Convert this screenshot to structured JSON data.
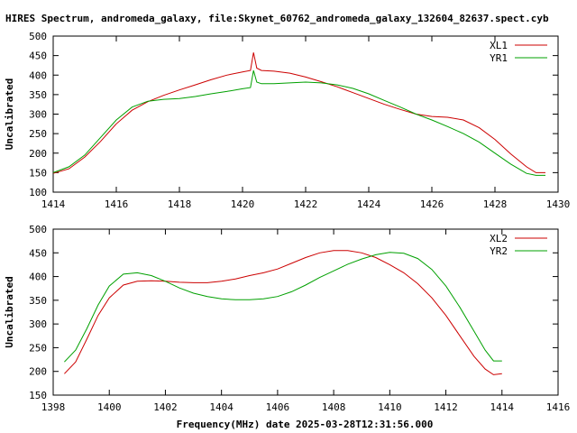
{
  "title": "HIRES Spectrum, andromeda_galaxy, file:Skynet_60762_andromeda_galaxy_132604_82637.spect.cyb",
  "xlabel": "Frequency(MHz) date 2025-03-28T12:31:56.000",
  "colors": {
    "red": "#cc0000",
    "green": "#00a000"
  },
  "chart_data": [
    {
      "type": "line",
      "ylabel": "Uncalibrated",
      "xlim": [
        1414,
        1430
      ],
      "ylim": [
        100,
        500
      ],
      "xticks": [
        1414,
        1416,
        1418,
        1420,
        1422,
        1424,
        1426,
        1428,
        1430
      ],
      "yticks": [
        100,
        150,
        200,
        250,
        300,
        350,
        400,
        450,
        500
      ],
      "grid": false,
      "legend_position": "top-right",
      "series": [
        {
          "name": "XL1",
          "color": "#cc0000",
          "points": [
            [
              1414.0,
              148
            ],
            [
              1414.5,
              160
            ],
            [
              1415.0,
              190
            ],
            [
              1415.5,
              230
            ],
            [
              1416.0,
              275
            ],
            [
              1416.5,
              310
            ],
            [
              1417.0,
              332
            ],
            [
              1417.5,
              348
            ],
            [
              1418.0,
              362
            ],
            [
              1418.5,
              375
            ],
            [
              1419.0,
              388
            ],
            [
              1419.5,
              400
            ],
            [
              1420.0,
              408
            ],
            [
              1420.25,
              412
            ],
            [
              1420.35,
              458
            ],
            [
              1420.45,
              418
            ],
            [
              1420.6,
              412
            ],
            [
              1421.0,
              410
            ],
            [
              1421.5,
              405
            ],
            [
              1422.0,
              395
            ],
            [
              1422.5,
              383
            ],
            [
              1423.0,
              370
            ],
            [
              1423.5,
              355
            ],
            [
              1424.0,
              340
            ],
            [
              1424.5,
              325
            ],
            [
              1425.0,
              312
            ],
            [
              1425.5,
              300
            ],
            [
              1426.0,
              294
            ],
            [
              1426.5,
              292
            ],
            [
              1427.0,
              285
            ],
            [
              1427.5,
              265
            ],
            [
              1428.0,
              235
            ],
            [
              1428.5,
              198
            ],
            [
              1429.0,
              165
            ],
            [
              1429.3,
              150
            ],
            [
              1429.6,
              150
            ]
          ]
        },
        {
          "name": "YR1",
          "color": "#00a000",
          "points": [
            [
              1414.0,
              150
            ],
            [
              1414.5,
              165
            ],
            [
              1415.0,
              195
            ],
            [
              1415.5,
              240
            ],
            [
              1416.0,
              285
            ],
            [
              1416.5,
              318
            ],
            [
              1417.0,
              333
            ],
            [
              1417.5,
              338
            ],
            [
              1418.0,
              340
            ],
            [
              1418.5,
              345
            ],
            [
              1419.0,
              352
            ],
            [
              1419.5,
              358
            ],
            [
              1420.0,
              365
            ],
            [
              1420.25,
              368
            ],
            [
              1420.35,
              412
            ],
            [
              1420.45,
              382
            ],
            [
              1420.6,
              378
            ],
            [
              1421.0,
              378
            ],
            [
              1421.5,
              380
            ],
            [
              1422.0,
              382
            ],
            [
              1422.5,
              380
            ],
            [
              1423.0,
              375
            ],
            [
              1423.5,
              366
            ],
            [
              1424.0,
              352
            ],
            [
              1424.5,
              335
            ],
            [
              1425.0,
              318
            ],
            [
              1425.5,
              300
            ],
            [
              1426.0,
              285
            ],
            [
              1426.5,
              268
            ],
            [
              1427.0,
              250
            ],
            [
              1427.5,
              228
            ],
            [
              1428.0,
              200
            ],
            [
              1428.5,
              172
            ],
            [
              1429.0,
              148
            ],
            [
              1429.3,
              143
            ],
            [
              1429.6,
              143
            ]
          ]
        }
      ]
    },
    {
      "type": "line",
      "ylabel": "Uncalibrated",
      "xlim": [
        1398,
        1416
      ],
      "ylim": [
        150,
        500
      ],
      "xticks": [
        1398,
        1400,
        1402,
        1404,
        1406,
        1408,
        1410,
        1412,
        1414,
        1416
      ],
      "yticks": [
        150,
        200,
        250,
        300,
        350,
        400,
        450,
        500
      ],
      "grid": false,
      "legend_position": "top-right",
      "series": [
        {
          "name": "XL2",
          "color": "#cc0000",
          "points": [
            [
              1398.4,
              195
            ],
            [
              1398.8,
              220
            ],
            [
              1399.2,
              268
            ],
            [
              1399.6,
              318
            ],
            [
              1400.0,
              355
            ],
            [
              1400.5,
              382
            ],
            [
              1401.0,
              390
            ],
            [
              1401.5,
              391
            ],
            [
              1402.0,
              390
            ],
            [
              1402.5,
              388
            ],
            [
              1403.0,
              387
            ],
            [
              1403.5,
              387
            ],
            [
              1404.0,
              390
            ],
            [
              1404.5,
              395
            ],
            [
              1405.0,
              402
            ],
            [
              1405.5,
              408
            ],
            [
              1406.0,
              416
            ],
            [
              1406.5,
              428
            ],
            [
              1407.0,
              440
            ],
            [
              1407.5,
              450
            ],
            [
              1408.0,
              455
            ],
            [
              1408.5,
              455
            ],
            [
              1409.0,
              450
            ],
            [
              1409.5,
              440
            ],
            [
              1410.0,
              425
            ],
            [
              1410.5,
              408
            ],
            [
              1411.0,
              385
            ],
            [
              1411.5,
              355
            ],
            [
              1412.0,
              318
            ],
            [
              1412.5,
              275
            ],
            [
              1413.0,
              232
            ],
            [
              1413.4,
              205
            ],
            [
              1413.7,
              193
            ],
            [
              1414.0,
              195
            ]
          ]
        },
        {
          "name": "YR2",
          "color": "#00a000",
          "points": [
            [
              1398.4,
              220
            ],
            [
              1398.8,
              245
            ],
            [
              1399.2,
              290
            ],
            [
              1399.6,
              340
            ],
            [
              1400.0,
              380
            ],
            [
              1400.5,
              405
            ],
            [
              1401.0,
              408
            ],
            [
              1401.5,
              402
            ],
            [
              1402.0,
              390
            ],
            [
              1402.5,
              376
            ],
            [
              1403.0,
              365
            ],
            [
              1403.5,
              358
            ],
            [
              1404.0,
              353
            ],
            [
              1404.5,
              351
            ],
            [
              1405.0,
              351
            ],
            [
              1405.5,
              353
            ],
            [
              1406.0,
              358
            ],
            [
              1406.5,
              368
            ],
            [
              1407.0,
              382
            ],
            [
              1407.5,
              398
            ],
            [
              1408.0,
              412
            ],
            [
              1408.5,
              426
            ],
            [
              1409.0,
              437
            ],
            [
              1409.5,
              446
            ],
            [
              1410.0,
              451
            ],
            [
              1410.5,
              449
            ],
            [
              1411.0,
              438
            ],
            [
              1411.5,
              415
            ],
            [
              1412.0,
              380
            ],
            [
              1412.5,
              335
            ],
            [
              1413.0,
              285
            ],
            [
              1413.4,
              245
            ],
            [
              1413.7,
              222
            ],
            [
              1414.0,
              222
            ]
          ]
        }
      ]
    }
  ]
}
